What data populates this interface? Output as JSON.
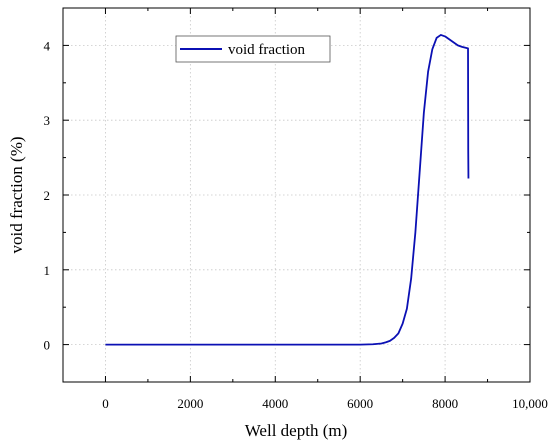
{
  "chart_data": {
    "type": "line",
    "xlabel": "Well depth (m)",
    "ylabel": "void fraction (%)",
    "xlim": [
      -1000,
      10000
    ],
    "ylim": [
      -0.5,
      4.5
    ],
    "xticks": [
      0,
      2000,
      4000,
      6000,
      8000,
      10000
    ],
    "xtick_labels": [
      "0",
      "2000",
      "4000",
      "6000",
      "8000",
      "10,000"
    ],
    "yticks": [
      0,
      1,
      2,
      3,
      4
    ],
    "ytick_labels": [
      "0",
      "1",
      "2",
      "3",
      "4"
    ],
    "grid": true,
    "legend_position": "top-center",
    "series": [
      {
        "name": "void fraction",
        "color": "#0b10b4",
        "x": [
          0,
          1000,
          2000,
          3000,
          4000,
          5000,
          6000,
          6300,
          6500,
          6600,
          6700,
          6800,
          6900,
          7000,
          7100,
          7200,
          7300,
          7400,
          7500,
          7600,
          7700,
          7800,
          7900,
          8000,
          8100,
          8200,
          8300,
          8400,
          8540,
          8545,
          8550
        ],
        "y": [
          0,
          0,
          0,
          0,
          0,
          0,
          0,
          0.005,
          0.015,
          0.03,
          0.05,
          0.09,
          0.15,
          0.28,
          0.48,
          0.88,
          1.5,
          2.3,
          3.1,
          3.65,
          3.95,
          4.1,
          4.14,
          4.12,
          4.08,
          4.04,
          4.0,
          3.98,
          3.96,
          2.6,
          2.22
        ]
      }
    ]
  }
}
